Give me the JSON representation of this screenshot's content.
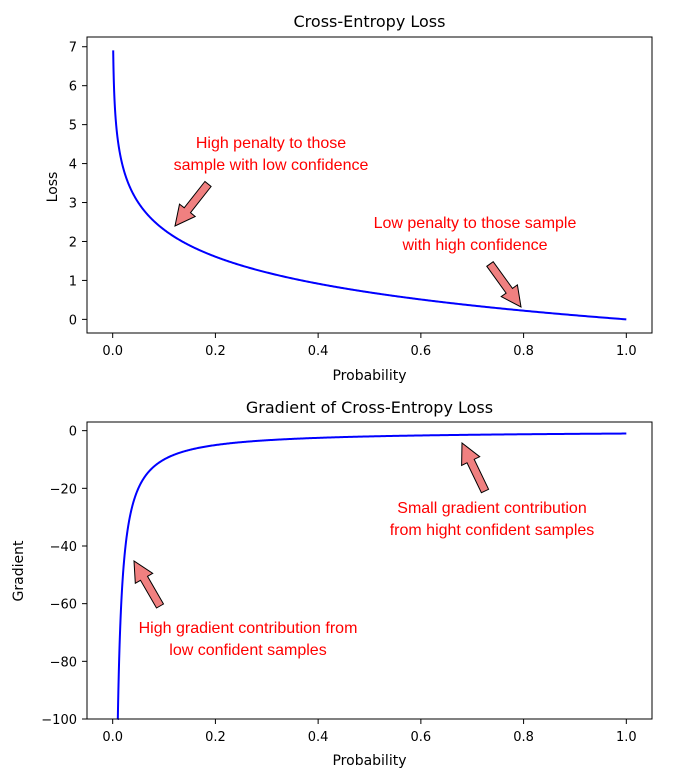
{
  "chart_data": [
    {
      "type": "line",
      "title": "Cross-Entropy Loss",
      "xlabel": "Probability",
      "ylabel": "Loss",
      "xlim": [
        -0.05,
        1.05
      ],
      "ylim": [
        -0.35,
        7.25
      ],
      "xticks": [
        0.0,
        0.2,
        0.4,
        0.6,
        0.8,
        1.0
      ],
      "xtick_labels": [
        "0.0",
        "0.2",
        "0.4",
        "0.6",
        "0.8",
        "1.0"
      ],
      "yticks": [
        0,
        1,
        2,
        3,
        4,
        5,
        6,
        7
      ],
      "ytick_labels": [
        "0",
        "1",
        "2",
        "3",
        "4",
        "5",
        "6",
        "7"
      ],
      "grid": false,
      "series": [
        {
          "function": "-ln(p)",
          "color": "#0000ff",
          "x": [
            0.001,
            0.002,
            0.005,
            0.01,
            0.02,
            0.03,
            0.05,
            0.08,
            0.1,
            0.13,
            0.16,
            0.2,
            0.25,
            0.3,
            0.35,
            0.4,
            0.45,
            0.5,
            0.55,
            0.6,
            0.65,
            0.7,
            0.75,
            0.8,
            0.85,
            0.9,
            0.95,
            1.0
          ],
          "y": [
            6.91,
            6.21,
            5.3,
            4.61,
            3.91,
            3.51,
            3.0,
            2.53,
            2.3,
            2.04,
            1.83,
            1.61,
            1.39,
            1.2,
            1.05,
            0.92,
            0.8,
            0.69,
            0.6,
            0.51,
            0.43,
            0.36,
            0.29,
            0.22,
            0.16,
            0.11,
            0.05,
            0.0
          ]
        }
      ],
      "annotations": [
        {
          "lines": [
            "High penalty to those",
            "sample with low confidence"
          ],
          "color": "#ff0000",
          "arrow_color": "#f08080",
          "points_to": [
            0.12,
            2.39
          ]
        },
        {
          "lines": [
            "Low penalty to those sample",
            "with high confidence"
          ],
          "color": "#ff0000",
          "arrow_color": "#f08080",
          "points_to": [
            0.8,
            0.22
          ]
        }
      ]
    },
    {
      "type": "line",
      "title": "Gradient of Cross-Entropy Loss",
      "xlabel": "Probability",
      "ylabel": "Gradient",
      "xlim": [
        -0.05,
        1.05
      ],
      "ylim": [
        -100,
        3
      ],
      "xticks": [
        0.0,
        0.2,
        0.4,
        0.6,
        0.8,
        1.0
      ],
      "xtick_labels": [
        "0.0",
        "0.2",
        "0.4",
        "0.6",
        "0.8",
        "1.0"
      ],
      "yticks": [
        0,
        -20,
        -40,
        -60,
        -80,
        -100
      ],
      "ytick_labels": [
        "0",
        "−20",
        "−40",
        "−60",
        "−80",
        "−100"
      ],
      "grid": false,
      "series": [
        {
          "function": "-1/p",
          "color": "#0000ff",
          "x": [
            0.01,
            0.012,
            0.015,
            0.02,
            0.025,
            0.03,
            0.04,
            0.05,
            0.06,
            0.08,
            0.1,
            0.13,
            0.16,
            0.2,
            0.25,
            0.3,
            0.4,
            0.5,
            0.6,
            0.7,
            0.8,
            0.9,
            1.0
          ],
          "y": [
            -100,
            -83.3,
            -66.7,
            -50,
            -40,
            -33.3,
            -25,
            -20,
            -16.7,
            -12.5,
            -10,
            -7.69,
            -6.25,
            -5,
            -4,
            -3.33,
            -2.5,
            -2,
            -1.67,
            -1.43,
            -1.25,
            -1.11,
            -1
          ]
        }
      ],
      "annotations": [
        {
          "lines": [
            "Small gradient contribution",
            "from hight confident samples"
          ],
          "color": "#ff0000",
          "arrow_color": "#f08080",
          "points_to": [
            0.68,
            -4
          ]
        },
        {
          "lines": [
            "High gradient contribution from",
            "low confident samples"
          ],
          "color": "#ff0000",
          "arrow_color": "#f08080",
          "points_to": [
            0.04,
            -44
          ]
        }
      ]
    }
  ]
}
